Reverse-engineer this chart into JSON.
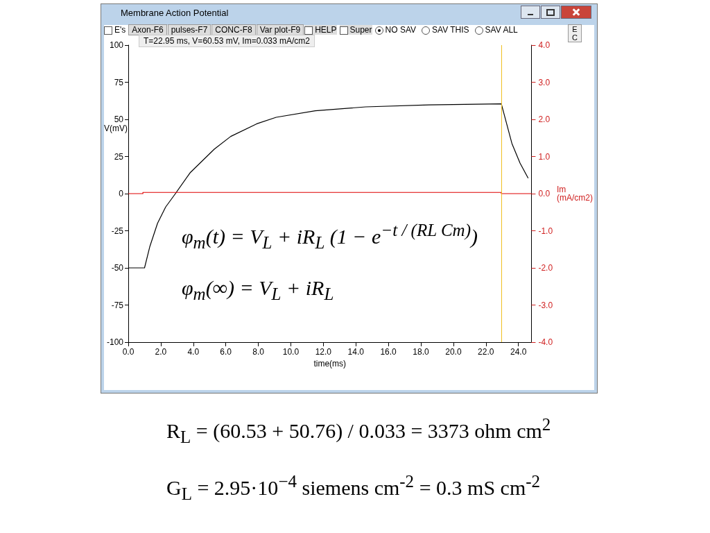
{
  "chart_data": {
    "type": "line",
    "title": "Membrane Action Potential",
    "xlabel": "time(ms)",
    "ylabel": "V(mV)",
    "y2label": "Im (mA/cm2)",
    "xlim": [
      0,
      24.8
    ],
    "xticks": [
      {
        "value": 0,
        "label": "0.0"
      },
      {
        "value": 2,
        "label": "2.0"
      },
      {
        "value": 4,
        "label": "4.0"
      },
      {
        "value": 6,
        "label": "6.0"
      },
      {
        "value": 8,
        "label": "8.0"
      },
      {
        "value": 10,
        "label": "10.0"
      },
      {
        "value": 12,
        "label": "12.0"
      },
      {
        "value": 14,
        "label": "14.0"
      },
      {
        "value": 16,
        "label": "16.0"
      },
      {
        "value": 18,
        "label": "18.0"
      },
      {
        "value": 20,
        "label": "20.0"
      },
      {
        "value": 22,
        "label": "22.0"
      },
      {
        "value": 24,
        "label": "24.0"
      }
    ],
    "ylim": [
      -100,
      100
    ],
    "yticks": [
      -100,
      -75,
      -50,
      -25,
      0,
      25,
      50,
      75,
      100
    ],
    "y2lim": [
      -4,
      4
    ],
    "y2ticks": [
      {
        "value": -4,
        "label": "-4.0"
      },
      {
        "value": -3,
        "label": "-3.0"
      },
      {
        "value": -2,
        "label": "-2.0"
      },
      {
        "value": -1,
        "label": "-1.0"
      },
      {
        "value": 0,
        "label": "0.0"
      },
      {
        "value": 1,
        "label": "1.0"
      },
      {
        "value": 2,
        "label": "2.0"
      },
      {
        "value": 3,
        "label": "3.0"
      },
      {
        "value": 4,
        "label": "4.0"
      }
    ],
    "series": [
      {
        "color": "#000000",
        "x": [
          0,
          1.0,
          1.33,
          1.8,
          2.3,
          2.9,
          3.8,
          5.3,
          6.3,
          7.9,
          9.1,
          11.5,
          14.6,
          18.5,
          22.95,
          23.6,
          24.1,
          24.6
        ],
        "values": [
          -50,
          -50,
          -35.5,
          -20,
          -9,
          0,
          14,
          30,
          38.5,
          47,
          51.4,
          55.8,
          58.4,
          59.8,
          60.5,
          33.8,
          20.6,
          10.4
        ]
      },
      {
        "color": "#e00000",
        "axis": "y2",
        "type": "step",
        "x": [
          0,
          0.9,
          22.95,
          24.8
        ],
        "values": [
          0,
          0.033,
          0,
          0
        ]
      }
    ],
    "ref_lines": [
      {
        "axis": "x",
        "value": 22.95,
        "color": "#f0c020"
      }
    ],
    "grid": false,
    "marker": "none",
    "annotations": [
      "E's",
      "Axon-F6",
      "pulses-F7",
      "CONC-F8",
      "Var plot-F9",
      "HELP",
      "Super",
      "NO SAV",
      "SAV THIS",
      "SAV ALL",
      "E C",
      "T=22.95 ms, V=60.53 mV, Im=0.033 mA/cm2",
      "φ$_{m}$(t) = V$_{L}$ + iR$_{L}$ (1 − e$^{−t / (RL Cm)}$)",
      "φ$_{m}$(∞) = V$_{L}$ + iR$_{L}$",
      "R$_{L}$ = (60.53 + 50.76) / 0.033 = 3373  ohm cm$^{2}$",
      "G$_{L}$ = 2.95·10$^{−4}$  siemens cm$^{-2}$ = 0.3  mS cm$^{-2}$"
    ]
  }
}
